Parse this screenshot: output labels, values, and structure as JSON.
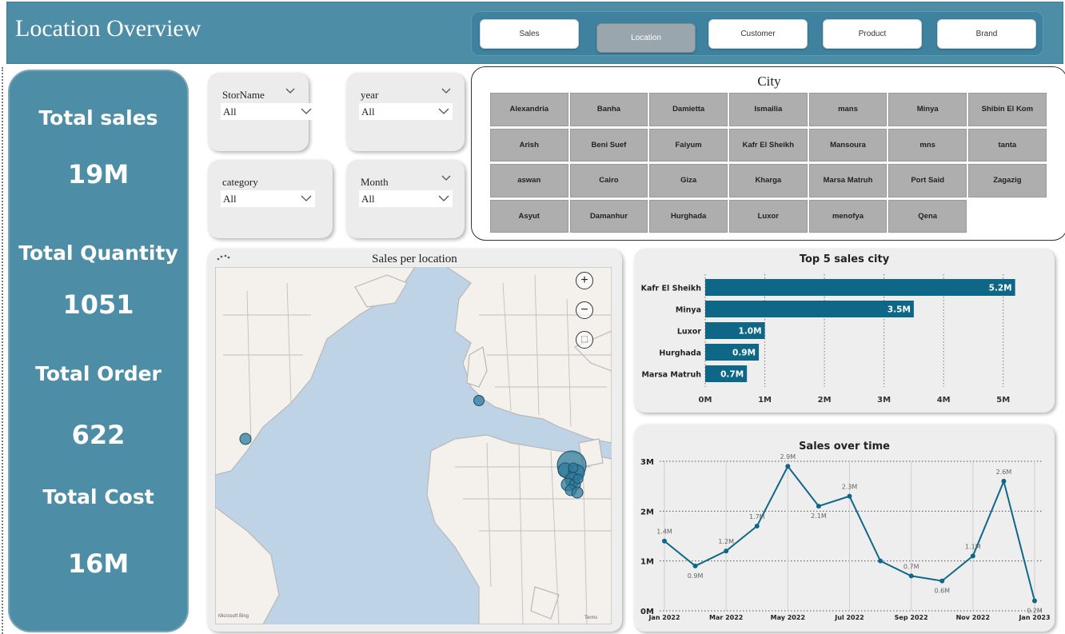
{
  "header": {
    "title": "Location Overview",
    "nav": [
      "Sales",
      "Location",
      "Customer",
      "Product",
      "Brand"
    ],
    "active_nav": "Location"
  },
  "kpis": [
    {
      "label": "Total sales",
      "value": "19M"
    },
    {
      "label": "Total Quantity",
      "value": "1051"
    },
    {
      "label": "Total Order",
      "value": "622"
    },
    {
      "label": "Total Cost",
      "value": "16M"
    }
  ],
  "filters": [
    {
      "title": "StorName",
      "value": "All"
    },
    {
      "title": "year",
      "value": "All"
    },
    {
      "title": "category",
      "value": "All"
    },
    {
      "title": "Month",
      "value": "All"
    }
  ],
  "city_slicer": {
    "title": "City",
    "cities": [
      "Alexandria",
      "Banha",
      "Damietta",
      "Ismailia",
      "mans",
      "Minya",
      "Shibin El Kom",
      "Arish",
      "Beni Suef",
      "Faiyum",
      "Kafr El Sheikh",
      "Mansoura",
      "mns",
      "tanta",
      "aswan",
      "Cairo",
      "Giza",
      "Kharga",
      "Marsa Matruh",
      "Port Said",
      "Zagazig",
      "Asyut",
      "Damanhur",
      "Hurghada",
      "Luxor",
      "menofya",
      "Qena"
    ]
  },
  "map": {
    "title": "Sales per location",
    "attribution_left": "Microsoft Bing",
    "attribution_right": "Terms",
    "colors": {
      "water": "#bfd3e6",
      "land": "#f4f1ec",
      "bubble": "#2f7b9b"
    }
  },
  "chart_data": [
    {
      "type": "bar",
      "orientation": "horizontal",
      "title": "Top 5 sales city",
      "categories": [
        "Kafr El Sheikh",
        "Minya",
        "Luxor",
        "Hurghada",
        "Marsa Matruh"
      ],
      "values": [
        5.2,
        3.5,
        1.0,
        0.9,
        0.7
      ],
      "data_labels": [
        "5.2M",
        "3.5M",
        "1.0M",
        "0.9M",
        "0.7M"
      ],
      "unit": "M",
      "xlim": [
        0,
        5.5
      ],
      "xticks": [
        0,
        1,
        2,
        3,
        4,
        5
      ],
      "xtick_labels": [
        "0M",
        "1M",
        "2M",
        "3M",
        "4M",
        "5M"
      ],
      "color": "#0f6788",
      "grid": true
    },
    {
      "type": "line",
      "title": "Sales over time",
      "x": [
        "2022-01",
        "2022-02",
        "2022-03",
        "2022-04",
        "2022-05",
        "2022-06",
        "2022-07",
        "2022-08",
        "2022-09",
        "2022-10",
        "2022-11",
        "2022-12",
        "2023-01"
      ],
      "values": [
        1.4,
        0.9,
        1.2,
        1.7,
        2.9,
        2.1,
        2.3,
        1.0,
        0.7,
        0.6,
        1.1,
        2.6,
        0.2
      ],
      "data_labels": [
        "1.4M",
        "0.9M",
        "1.2M",
        "1.7M",
        "2.9M",
        "2.1M",
        "2.3M",
        "",
        "0.7M",
        "0.6M",
        "1.1M",
        "2.6M",
        "0.2M"
      ],
      "xtick_labels": [
        "Jan 2022",
        "Mar 2022",
        "May 2022",
        "Jul 2022",
        "Sep 2022",
        "Nov 2022",
        "Jan 2023"
      ],
      "ytick_labels": [
        "0M",
        "1M",
        "2M",
        "3M"
      ],
      "ylim": [
        0,
        3
      ],
      "color": "#0f6788",
      "grid": true
    }
  ]
}
